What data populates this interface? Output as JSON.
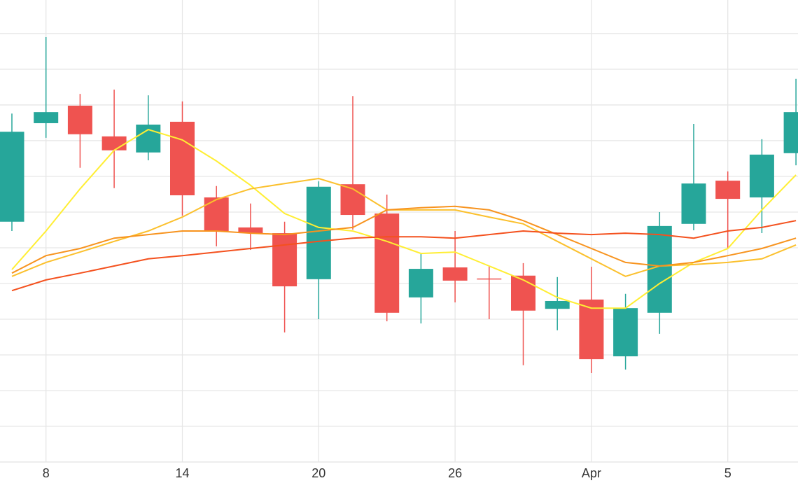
{
  "chart_data": {
    "type": "candlestick",
    "categories": [
      null,
      "8",
      null,
      null,
      null,
      "14",
      null,
      null,
      null,
      "20",
      null,
      null,
      null,
      "26",
      null,
      null,
      null,
      "Apr",
      null,
      null,
      null,
      "5",
      null,
      null
    ],
    "open": [
      6.73,
      9.49,
      9.98,
      9.12,
      8.67,
      9.53,
      7.41,
      6.57,
      6.41,
      5.12,
      7.78,
      6.96,
      4.61,
      5.45,
      5.14,
      5.22,
      4.29,
      4.55,
      2.96,
      4.18,
      6.67,
      7.88,
      7.41,
      8.65
    ],
    "high": [
      9.76,
      11.9,
      10.31,
      10.43,
      10.27,
      10.1,
      7.73,
      7.24,
      6.73,
      7.86,
      10.25,
      7.49,
      5.84,
      6.47,
      5.49,
      5.57,
      5.18,
      5.47,
      4.71,
      7.0,
      9.47,
      8.14,
      9.04,
      10.73
    ],
    "low": [
      6.47,
      9.08,
      8.24,
      7.67,
      8.45,
      6.9,
      6.04,
      5.94,
      3.63,
      4.0,
      6.51,
      3.94,
      3.88,
      4.47,
      4.0,
      2.71,
      3.69,
      2.49,
      2.59,
      3.59,
      6.49,
      5.98,
      6.41,
      8.31
    ],
    "close": [
      9.25,
      9.8,
      9.18,
      8.73,
      9.45,
      7.47,
      6.47,
      6.41,
      4.92,
      7.71,
      6.92,
      4.18,
      5.41,
      5.08,
      5.12,
      4.24,
      4.51,
      2.88,
      4.31,
      6.61,
      7.8,
      7.37,
      8.61,
      9.8
    ],
    "up_color": "#26a69a",
    "down_color": "#ef5350",
    "series": [
      {
        "color": "#ffee33",
        "values": [
          5.39,
          6.47,
          7.65,
          8.73,
          9.31,
          9.02,
          8.43,
          7.75,
          6.96,
          6.57,
          6.47,
          6.18,
          5.84,
          5.88,
          5.49,
          5.1,
          4.61,
          4.31,
          4.31,
          5.0,
          5.59,
          5.98,
          7.06,
          8.04
        ]
      },
      {
        "color": "#fbc02d",
        "values": [
          5.2,
          5.59,
          5.88,
          6.18,
          6.47,
          6.86,
          7.35,
          7.65,
          7.8,
          7.94,
          7.65,
          7.06,
          7.06,
          7.06,
          6.86,
          6.67,
          6.18,
          5.69,
          5.2,
          5.49,
          5.53,
          5.59,
          5.69,
          6.08
        ]
      },
      {
        "color": "#f7931e",
        "values": [
          5.29,
          5.78,
          5.98,
          6.27,
          6.37,
          6.47,
          6.47,
          6.41,
          6.37,
          6.47,
          6.57,
          7.06,
          7.12,
          7.16,
          7.06,
          6.76,
          6.37,
          5.98,
          5.59,
          5.49,
          5.59,
          5.78,
          5.98,
          6.27
        ]
      },
      {
        "color": "#f4511e",
        "values": [
          4.8,
          5.1,
          5.29,
          5.49,
          5.69,
          5.78,
          5.88,
          5.98,
          6.08,
          6.18,
          6.27,
          6.31,
          6.31,
          6.27,
          6.37,
          6.47,
          6.41,
          6.37,
          6.41,
          6.37,
          6.27,
          6.47,
          6.57,
          6.76
        ]
      }
    ],
    "ylim": [
      0,
      12.94
    ],
    "yticks": [
      0,
      1,
      2,
      3,
      4,
      5,
      6,
      7,
      8,
      9,
      10,
      11,
      12
    ],
    "grid": true
  }
}
